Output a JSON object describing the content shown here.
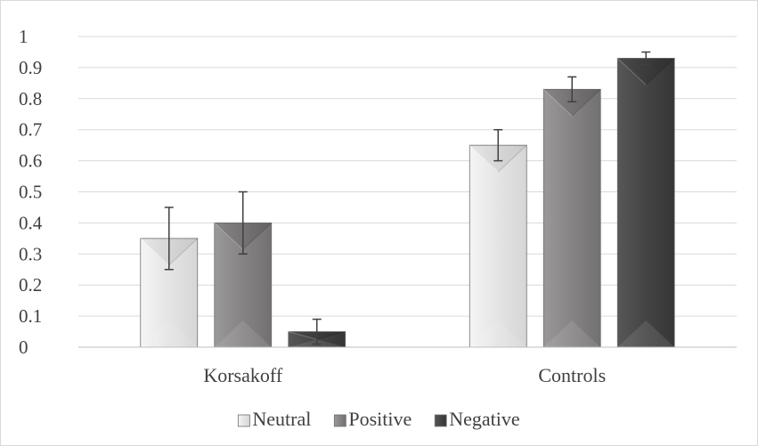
{
  "chart_data": {
    "type": "bar",
    "title": "",
    "xlabel": "",
    "ylabel": "",
    "ylim": [
      0,
      1
    ],
    "yticks": [
      "0",
      "0.1",
      "0.2",
      "0.3",
      "0.4",
      "0.5",
      "0.6",
      "0.7",
      "0.8",
      "0.9",
      "1"
    ],
    "grid": true,
    "legend_position": "bottom",
    "categories": [
      "Korsakoff",
      "Controls"
    ],
    "series": [
      {
        "name": "Neutral",
        "values": [
          0.35,
          0.65
        ],
        "errors": [
          0.1,
          0.05
        ],
        "color": "#e4e4e4"
      },
      {
        "name": "Positive",
        "values": [
          0.4,
          0.83
        ],
        "errors": [
          0.1,
          0.04
        ],
        "color": "#8a8888"
      },
      {
        "name": "Negative",
        "values": [
          0.05,
          0.93
        ],
        "errors": [
          0.04,
          0.02
        ],
        "color": "#4a4a4a"
      }
    ]
  }
}
